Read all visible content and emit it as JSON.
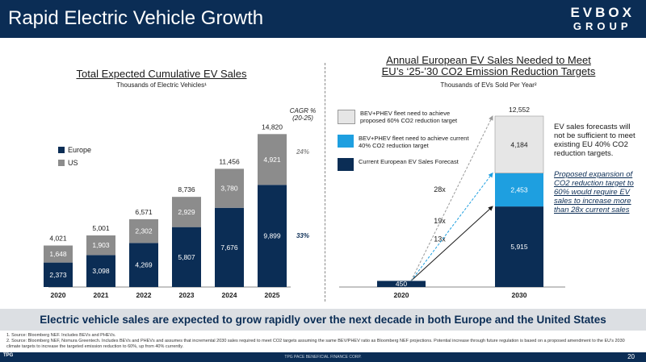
{
  "header": {
    "title": "Rapid Electric Vehicle Growth",
    "brand_line1": "EVBOX",
    "brand_line2": "GROUP"
  },
  "left": {
    "title": "Total Expected Cumulative EV Sales",
    "subtitle": "Thousands of Electric Vehicles¹",
    "cagr_header": "CAGR %\n(20-25)",
    "legend": [
      {
        "label": "Europe",
        "color": "#0b2d55"
      },
      {
        "label": "US",
        "color": "#8c8c8c"
      }
    ]
  },
  "right": {
    "title_line1": "Annual European EV Sales Needed to Meet",
    "title_line2": "EU’s ‘25-’30 CO2 Emission Reduction Targets",
    "subtitle": "Thousands of EVs Sold Per Year²",
    "legend": [
      {
        "label": "BEV+PHEV fleet need to achieve proposed 60% CO2 reduction target",
        "color": "#e6e6e6"
      },
      {
        "label": "BEV+PHEV fleet need to achieve current 40% CO2 reduction target",
        "color": "#1e9fe0"
      },
      {
        "label": "Current European EV Sales Forecast",
        "color": "#0b2d55"
      }
    ],
    "note1": "EV sales forecasts will not be sufficient to meet existing EU 40% CO2 reduction targets.",
    "note2": "Proposed expansion of CO2 reduction target to 60% would require EV sales to increase more than 28x current sales"
  },
  "banner": "Electric vehicle sales are expected to grow rapidly over the next decade in both Europe and the United States",
  "footnotes": [
    "1. Source: Bloomberg NEF. Includes BEVs and PHEVs.",
    "2. Source: Bloomberg NEF, Nomura Greentech. Includes BEVs and PHEVs and assumes that incremental 2030 sales required to meet CO2 targets assuming the same BEV/PHEV ratio as Bloomberg NEF projections. Potential increase through future regulation is based on a proposed amendment to the EU’s 2030 climate targets to increase the targeted emission reduction to 60%, up from 40% currently."
  ],
  "footer": {
    "company": "TPG PACE BENEFICIAL FINANCE CORP.",
    "page": "20",
    "logo": "TPG"
  },
  "chart_data": [
    {
      "type": "bar",
      "stacked": true,
      "title": "Total Expected Cumulative EV Sales",
      "ylabel": "Thousands of Electric Vehicles",
      "categories": [
        "2020",
        "2021",
        "2022",
        "2023",
        "2024",
        "2025"
      ],
      "series": [
        {
          "name": "Europe",
          "color": "#0b2d55",
          "values": [
            2373,
            3098,
            4269,
            5807,
            7676,
            9899
          ],
          "cagr": "33%"
        },
        {
          "name": "US",
          "color": "#8c8c8c",
          "values": [
            1648,
            1903,
            2302,
            2929,
            3780,
            4921
          ],
          "cagr": "24%"
        }
      ],
      "totals": [
        4021,
        5001,
        6571,
        8736,
        11456,
        14820
      ],
      "ylim": [
        0,
        15000
      ]
    },
    {
      "type": "bar",
      "stacked": true,
      "title": "Annual European EV Sales Needed to Meet EU’s ‘25-’30 CO2 Emission Reduction Targets",
      "ylabel": "Thousands of EVs Sold Per Year",
      "categories": [
        "2020",
        "2030"
      ],
      "series": [
        {
          "name": "Current European EV Sales Forecast",
          "color": "#0b2d55",
          "values": [
            450,
            5915
          ]
        },
        {
          "name": "BEV+PHEV fleet need to achieve current 40% CO2 reduction target",
          "color": "#1e9fe0",
          "values": [
            0,
            2453
          ]
        },
        {
          "name": "BEV+PHEV fleet need to achieve proposed 60% CO2 reduction target",
          "color": "#e6e6e6",
          "values": [
            0,
            4184
          ]
        }
      ],
      "totals": [
        450,
        12552
      ],
      "multipliers": [
        "13x",
        "19x",
        "28x"
      ],
      "ylim": [
        0,
        12552
      ]
    }
  ]
}
